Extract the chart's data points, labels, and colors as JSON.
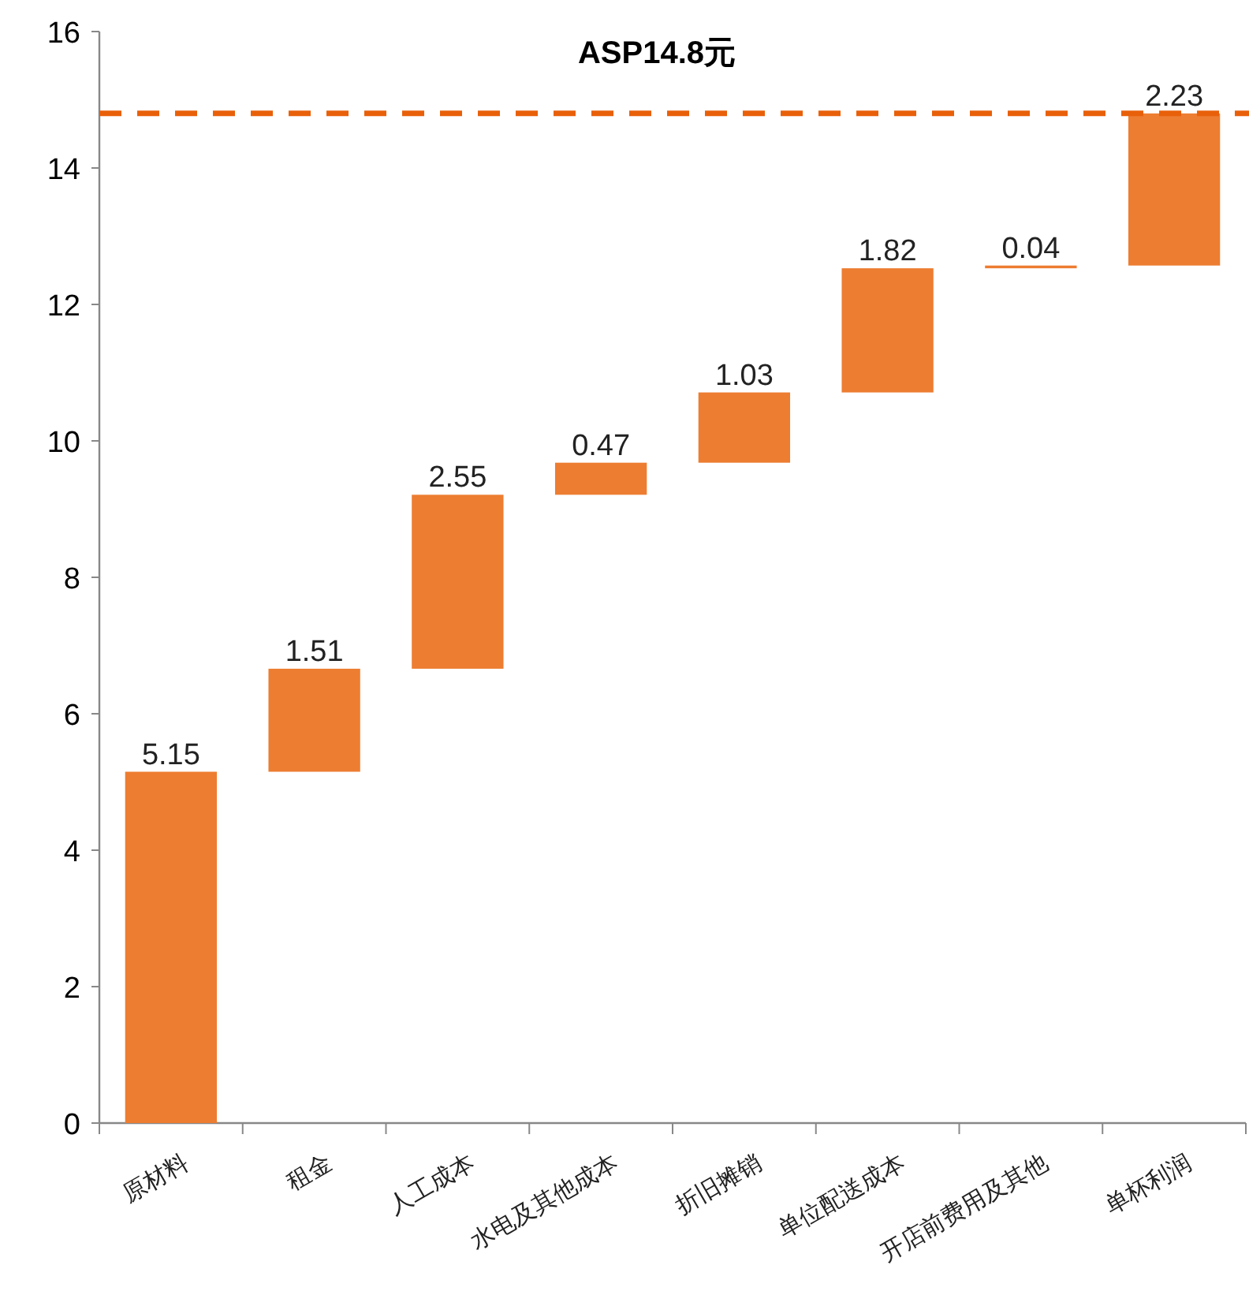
{
  "chart_data": {
    "type": "bar",
    "categories": [
      "原材料",
      "租金",
      "人工成本",
      "水电及其他成本",
      "折旧摊销",
      "单位配送成本",
      "开店前费用及其他",
      "单杯利润"
    ],
    "values": [
      5.15,
      1.51,
      2.55,
      0.47,
      1.03,
      1.82,
      0.04,
      2.23
    ],
    "base": [
      0,
      5.15,
      6.66,
      9.21,
      9.68,
      10.71,
      12.53,
      12.57
    ],
    "color": "#ed7d31",
    "ylim": [
      0,
      16
    ],
    "yticks": [
      0,
      2,
      4,
      6,
      8,
      10,
      12,
      14,
      16
    ],
    "data_labels": true,
    "ref_lines": [
      {
        "axis": "y",
        "value": 14.8,
        "label": "ASP14.8元",
        "color": "#e8600a",
        "line_style": "dashed"
      }
    ]
  }
}
